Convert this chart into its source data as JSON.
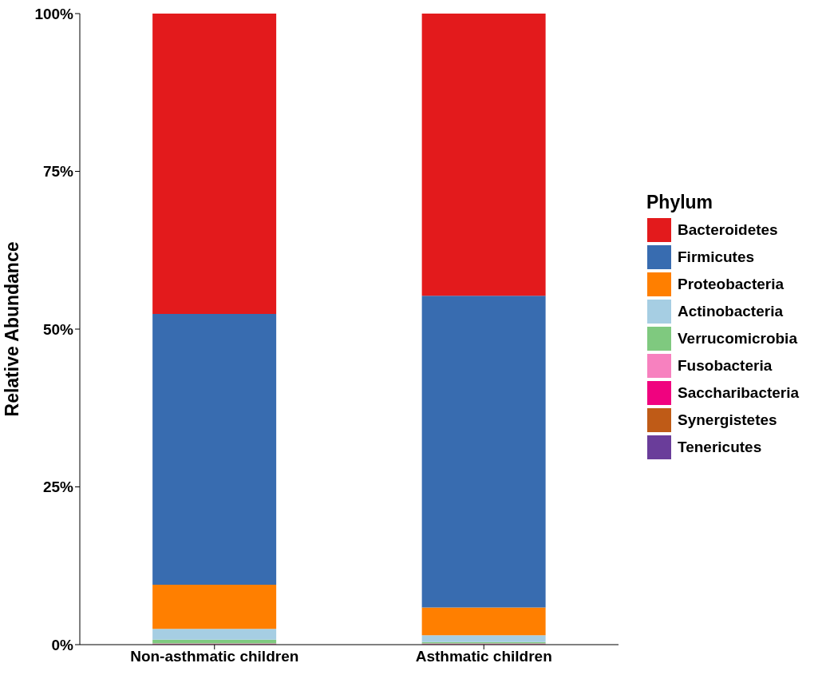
{
  "chart_data": {
    "type": "bar",
    "stacked": true,
    "ylabel": "Relative Abundance",
    "legend_title": "Phylum",
    "legend": "right",
    "grid": false,
    "categories": [
      "Non-asthmatic children",
      "Asthmatic children"
    ],
    "ylim": [
      0,
      100
    ],
    "yticks": [
      {
        "value": 0,
        "label": "0%"
      },
      {
        "value": 25,
        "label": "25%"
      },
      {
        "value": 50,
        "label": "50%"
      },
      {
        "value": 75,
        "label": "75%"
      },
      {
        "value": 100,
        "label": "100%"
      }
    ],
    "series": [
      {
        "name": "Tenericutes",
        "color": "#6a3d9a",
        "values": [
          0,
          0
        ]
      },
      {
        "name": "Synergistetes",
        "color": "#bf5b17",
        "values": [
          0,
          0
        ]
      },
      {
        "name": "Saccharibacteria",
        "color": "#f0027f",
        "values": [
          0,
          0
        ]
      },
      {
        "name": "Fusobacteria",
        "color": "#f781bf",
        "values": [
          0.2,
          0.2
        ]
      },
      {
        "name": "Verrucomicrobia",
        "color": "#7fc97f",
        "values": [
          0.6,
          0.2
        ]
      },
      {
        "name": "Actinobacteria",
        "color": "#a6cee3",
        "values": [
          1.7,
          1.1
        ]
      },
      {
        "name": "Proteobacteria",
        "color": "#ff7f00",
        "values": [
          7.0,
          4.4
        ]
      },
      {
        "name": "Firmicutes",
        "color": "#386cb0",
        "values": [
          42.9,
          49.4
        ]
      },
      {
        "name": "Bacteroidetes",
        "color": "#e31a1c",
        "values": [
          47.7,
          44.8
        ]
      }
    ]
  }
}
